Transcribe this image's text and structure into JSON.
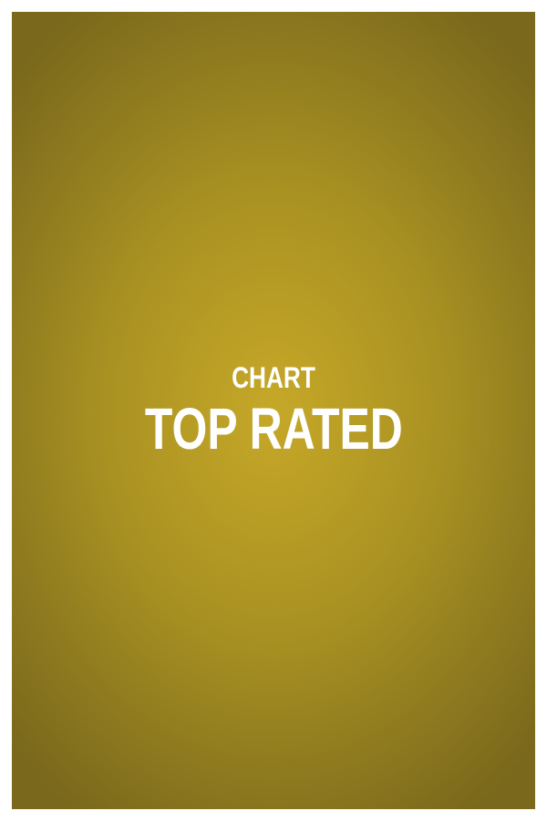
{
  "poster": {
    "eyebrow": "CHART",
    "title": "TOP RATED"
  },
  "colors": {
    "background_center": "#c6a828",
    "background_edge": "#7a681c",
    "text": "#ffffff",
    "frame": "#ffffff"
  }
}
